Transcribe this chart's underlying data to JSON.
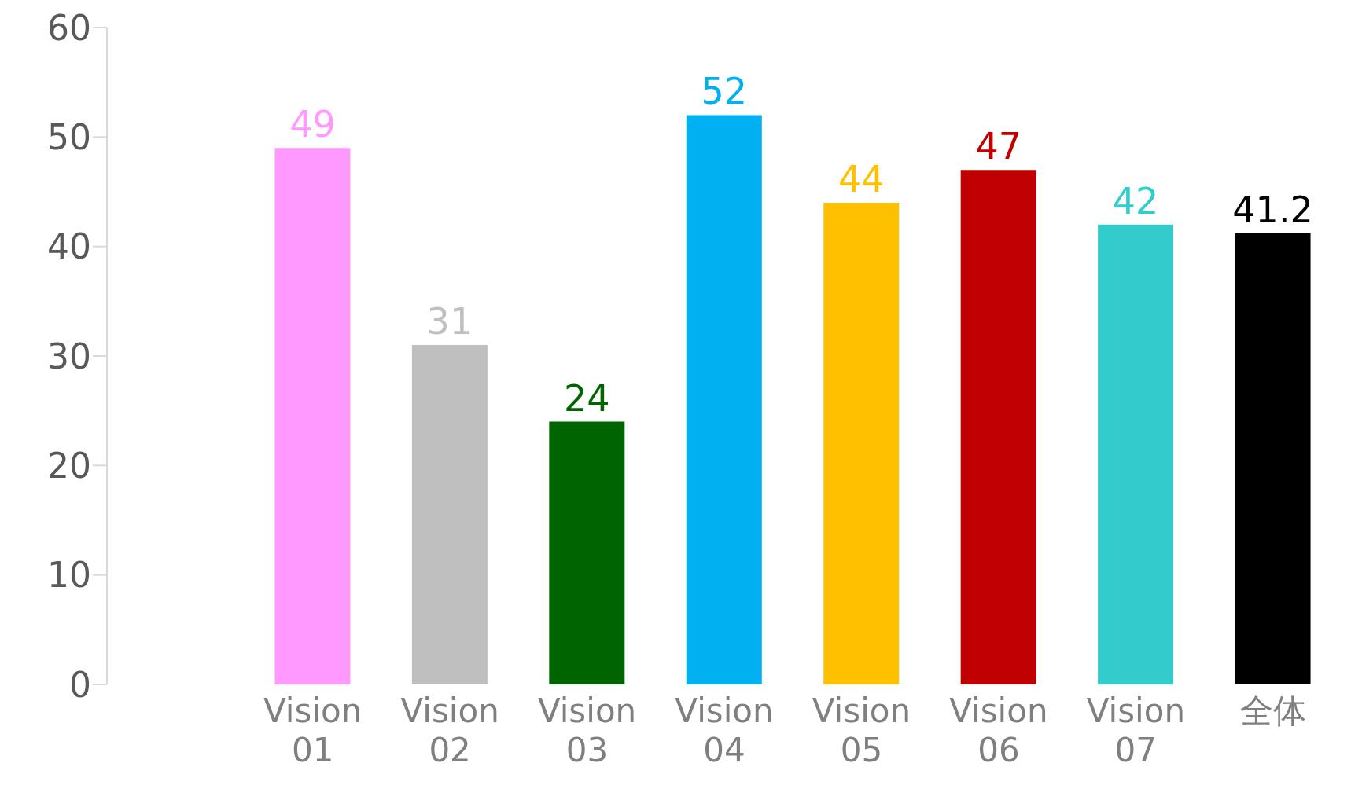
{
  "chart_data": {
    "type": "bar",
    "categories": [
      null,
      "Vision 01",
      "Vision 02",
      "Vision 03",
      "Vision 04",
      "Vision 05",
      "Vision 06",
      "Vision 07",
      "全体"
    ],
    "values": [
      null,
      49,
      31,
      24,
      52,
      44,
      47,
      42,
      41.2
    ],
    "colors": [
      "#ffffff",
      "#ff99ff",
      "#bfbfbf",
      "#006400",
      "#00b0f0",
      "#ffc000",
      "#c00000",
      "#33cccc",
      "#000000"
    ],
    "ylim": [
      0,
      60
    ],
    "yticks": [
      0,
      10,
      20,
      30,
      40,
      50,
      60
    ],
    "grid": false,
    "data_labels": true
  }
}
